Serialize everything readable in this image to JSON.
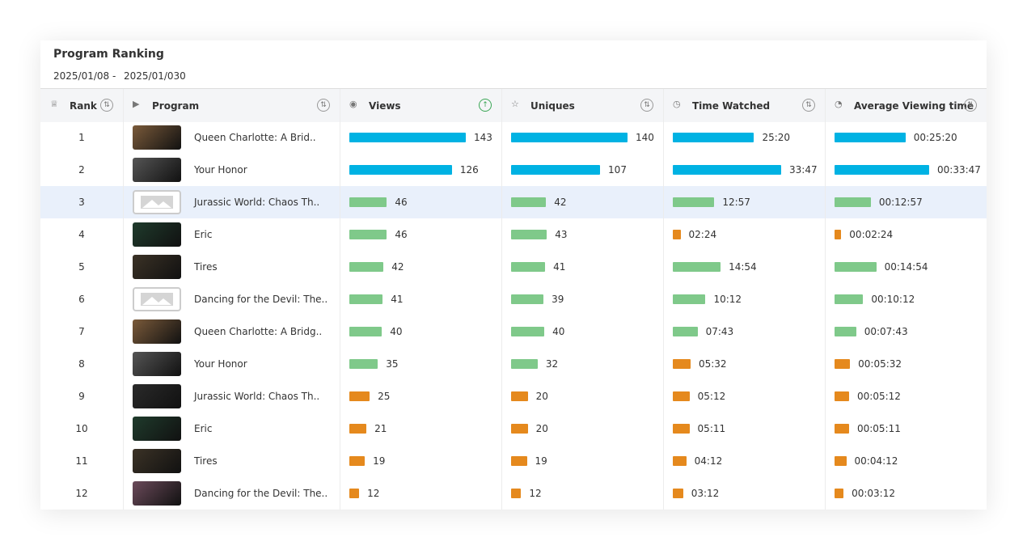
{
  "header": {
    "title": "Program Ranking",
    "date_start": "2025/01/08",
    "date_sep": "-",
    "date_end": "2025/01/030"
  },
  "columns": [
    "Rank",
    "Program",
    "Views",
    "Uniques",
    "Time Watched",
    "Average Viewing time"
  ],
  "rows": [
    {
      "rank": 1,
      "program": "Queen Charlotte: A Brid..",
      "views": 143,
      "uniques": 140,
      "time_watched": "25:20",
      "avg_viewing_time": "00:25:20",
      "bar_colors": [
        "#00b2e3",
        "#00b2e3",
        "#00b2e3",
        "#00b2e3"
      ]
    },
    {
      "rank": 2,
      "program": "Your Honor",
      "views": 126,
      "uniques": 107,
      "time_watched": "33:47",
      "avg_viewing_time": "00:33:47",
      "bar_colors": [
        "#00b2e3",
        "#00b2e3",
        "#00b2e3",
        "#00b2e3"
      ]
    },
    {
      "rank": 3,
      "program": "Jurassic World: Chaos Th..",
      "views": 46,
      "uniques": 42,
      "time_watched": "12:57",
      "avg_viewing_time": "00:12:57",
      "bar_colors": [
        "#7fc98a",
        "#7fc98a",
        "#7fc98a",
        "#7fc98a"
      ]
    },
    {
      "rank": 4,
      "program": "Eric",
      "views": 46,
      "uniques": 43,
      "time_watched": "02:24",
      "avg_viewing_time": "00:02:24",
      "bar_colors": [
        "#7fc98a",
        "#7fc98a",
        "#e5891d",
        "#e5891d"
      ]
    },
    {
      "rank": 5,
      "program": "Tires",
      "views": 42,
      "uniques": 41,
      "time_watched": "14:54",
      "avg_viewing_time": "00:14:54",
      "bar_colors": [
        "#7fc98a",
        "#7fc98a",
        "#7fc98a",
        "#7fc98a"
      ]
    },
    {
      "rank": 6,
      "program": "Dancing for the Devil: The..",
      "views": 41,
      "uniques": 39,
      "time_watched": "10:12",
      "avg_viewing_time": "00:10:12",
      "bar_colors": [
        "#7fc98a",
        "#7fc98a",
        "#7fc98a",
        "#7fc98a"
      ]
    },
    {
      "rank": 7,
      "program": "Queen Charlotte: A Bridg..",
      "views": 40,
      "uniques": 40,
      "time_watched": "07:43",
      "avg_viewing_time": "00:07:43",
      "bar_colors": [
        "#7fc98a",
        "#7fc98a",
        "#7fc98a",
        "#7fc98a"
      ]
    },
    {
      "rank": 8,
      "program": "Your Honor",
      "views": 35,
      "uniques": 32,
      "time_watched": "05:32",
      "avg_viewing_time": "00:05:32",
      "bar_colors": [
        "#7fc98a",
        "#7fc98a",
        "#e5891d",
        "#e5891d"
      ]
    },
    {
      "rank": 9,
      "program": "Jurassic World: Chaos Th..",
      "views": 25,
      "uniques": 20,
      "time_watched": "05:12",
      "avg_viewing_time": "00:05:12",
      "bar_colors": [
        "#e5891d",
        "#e5891d",
        "#e5891d",
        "#e5891d"
      ]
    },
    {
      "rank": 10,
      "program": "Eric",
      "views": 21,
      "uniques": 20,
      "time_watched": "05:11",
      "avg_viewing_time": "00:05:11",
      "bar_colors": [
        "#e5891d",
        "#e5891d",
        "#e5891d",
        "#e5891d"
      ]
    },
    {
      "rank": 11,
      "program": "Tires",
      "views": 19,
      "uniques": 19,
      "time_watched": "04:12",
      "avg_viewing_time": "00:04:12",
      "bar_colors": [
        "#e5891d",
        "#e5891d",
        "#e5891d",
        "#e5891d"
      ]
    },
    {
      "rank": 12,
      "program": "Dancing for the Devil: The..",
      "views": 12,
      "uniques": 12,
      "time_watched": "03:12",
      "avg_viewing_time": "00:03:12",
      "bar_colors": [
        "#e5891d",
        "#e5891d",
        "#e5891d",
        "#e5891d"
      ]
    }
  ]
}
